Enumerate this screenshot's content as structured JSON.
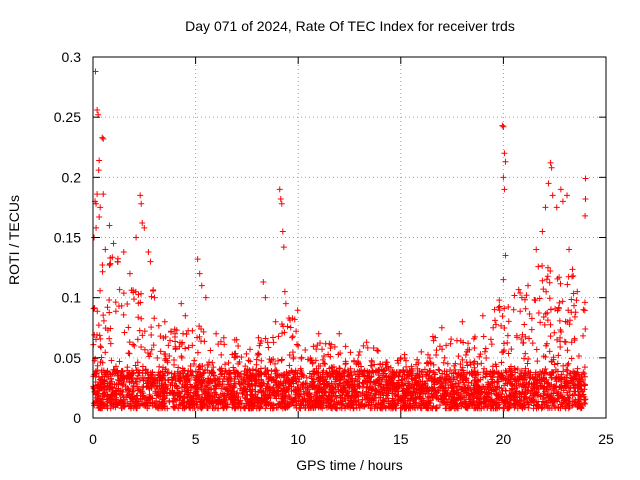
{
  "chart_data": {
    "type": "scatter",
    "title": "Day 071 of 2024, Rate Of TEC Index for receiver trds",
    "xlabel": "GPS time / hours",
    "ylabel": "ROTI / TECUs",
    "xlim": [
      0,
      25
    ],
    "ylim": [
      0,
      0.3
    ],
    "xticks": [
      0,
      5,
      10,
      15,
      20,
      25
    ],
    "xtick_labels": [
      "0",
      "5",
      "10",
      "15",
      "20",
      "25"
    ],
    "yticks": [
      0,
      0.05,
      0.1,
      0.15,
      0.2,
      0.25,
      0.3
    ],
    "ytick_labels": [
      "0",
      "0.05",
      "0.1",
      "0.15",
      "0.2",
      "0.25",
      "0.3"
    ],
    "grid": true,
    "marker": "+",
    "color": "#ff0000",
    "series": [
      {
        "name": "ROTI",
        "points": [
          [
            0.12,
            0.288
          ],
          [
            0.2,
            0.256
          ],
          [
            0.25,
            0.252
          ],
          [
            0.28,
            0.206
          ],
          [
            0.3,
            0.214
          ],
          [
            0.45,
            0.233
          ],
          [
            0.5,
            0.232
          ],
          [
            0.1,
            0.18
          ],
          [
            0.15,
            0.178
          ],
          [
            0.2,
            0.186
          ],
          [
            0.35,
            0.175
          ],
          [
            0.5,
            0.186
          ],
          [
            0.05,
            0.15
          ],
          [
            0.15,
            0.158
          ],
          [
            0.3,
            0.167
          ],
          [
            0.6,
            0.14
          ],
          [
            0.8,
            0.16
          ],
          [
            1.0,
            0.145
          ],
          [
            1.2,
            0.13
          ],
          [
            1.5,
            0.138
          ],
          [
            1.8,
            0.12
          ],
          [
            2.1,
            0.15
          ],
          [
            2.3,
            0.185
          ],
          [
            2.35,
            0.178
          ],
          [
            2.4,
            0.162
          ],
          [
            2.5,
            0.158
          ],
          [
            2.7,
            0.138
          ],
          [
            2.8,
            0.13
          ],
          [
            3.0,
            0.1
          ],
          [
            3.5,
            0.08
          ],
          [
            4.0,
            0.07
          ],
          [
            4.3,
            0.095
          ],
          [
            4.5,
            0.085
          ],
          [
            5.1,
            0.132
          ],
          [
            5.2,
            0.12
          ],
          [
            5.3,
            0.11
          ],
          [
            5.5,
            0.1
          ],
          [
            6.0,
            0.07
          ],
          [
            7.0,
            0.065
          ],
          [
            8.3,
            0.113
          ],
          [
            8.4,
            0.1
          ],
          [
            8.9,
            0.08
          ],
          [
            9.1,
            0.19
          ],
          [
            9.15,
            0.182
          ],
          [
            9.2,
            0.178
          ],
          [
            9.25,
            0.155
          ],
          [
            9.3,
            0.142
          ],
          [
            9.35,
            0.105
          ],
          [
            9.4,
            0.095
          ],
          [
            10.0,
            0.06
          ],
          [
            11.0,
            0.07
          ],
          [
            12.0,
            0.07
          ],
          [
            13.0,
            0.055
          ],
          [
            14.0,
            0.045
          ],
          [
            15.0,
            0.05
          ],
          [
            16.0,
            0.055
          ],
          [
            17.0,
            0.075
          ],
          [
            18.0,
            0.08
          ],
          [
            19.0,
            0.085
          ],
          [
            19.5,
            0.075
          ],
          [
            19.8,
            0.098
          ],
          [
            19.95,
            0.243
          ],
          [
            20.0,
            0.242
          ],
          [
            20.05,
            0.22
          ],
          [
            20.1,
            0.213
          ],
          [
            20.0,
            0.2
          ],
          [
            20.05,
            0.19
          ],
          [
            20.1,
            0.135
          ],
          [
            20.0,
            0.115
          ],
          [
            20.5,
            0.09
          ],
          [
            20.9,
            0.1
          ],
          [
            21.2,
            0.11
          ],
          [
            21.6,
            0.14
          ],
          [
            21.9,
            0.155
          ],
          [
            22.05,
            0.175
          ],
          [
            22.2,
            0.195
          ],
          [
            22.3,
            0.212
          ],
          [
            22.35,
            0.208
          ],
          [
            22.4,
            0.185
          ],
          [
            22.6,
            0.175
          ],
          [
            22.8,
            0.19
          ],
          [
            22.9,
            0.18
          ],
          [
            23.1,
            0.185
          ],
          [
            23.2,
            0.14
          ],
          [
            23.4,
            0.118
          ],
          [
            23.6,
            0.105
          ],
          [
            23.9,
            0.09
          ],
          [
            24.0,
            0.199
          ],
          [
            24.0,
            0.182
          ],
          [
            23.98,
            0.168
          ]
        ]
      }
    ]
  }
}
